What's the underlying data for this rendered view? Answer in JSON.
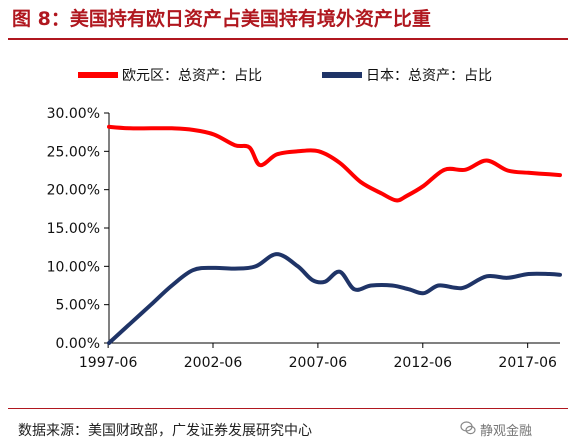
{
  "figure": {
    "title": "图 8：美国持有欧日资产占美国持有境外资产比重",
    "source": "数据来源：美国财政部，广发证券发展研究中心",
    "watermark": "静观金融"
  },
  "chart_data": {
    "type": "line",
    "title": "",
    "xlabel": "",
    "ylabel": "",
    "x_tick_labels": [
      "1997-06",
      "2002-06",
      "2007-06",
      "2012-06",
      "2017-06"
    ],
    "y_tick_labels": [
      "0.00%",
      "5.00%",
      "10.00%",
      "15.00%",
      "20.00%",
      "25.00%",
      "30.00%"
    ],
    "ylim": [
      0,
      30
    ],
    "xlim": [
      1997.5,
      2019.0
    ],
    "grid": false,
    "legend_position": "top",
    "series": [
      {
        "name": "欧元区：总资产：占比",
        "color": "#ff0000",
        "x": [
          1997.5,
          1998.5,
          1999.5,
          2000.5,
          2001.5,
          2002.5,
          2003.5,
          2004.2,
          2004.7,
          2005.5,
          2006.5,
          2007.5,
          2008.5,
          2009.5,
          2010.5,
          2011.2,
          2011.7,
          2012.5,
          2013.5,
          2014.5,
          2015.5,
          2016.5,
          2017.5,
          2018.5,
          2019.0
        ],
        "values": [
          28.2,
          28.0,
          28.0,
          28.0,
          27.8,
          27.2,
          25.8,
          25.5,
          23.2,
          24.6,
          25.0,
          25.0,
          23.5,
          21.0,
          19.5,
          18.6,
          19.2,
          20.5,
          22.6,
          22.6,
          23.8,
          22.5,
          22.2,
          22.0,
          21.9
        ]
      },
      {
        "name": "日本：总资产：占比",
        "color": "#1f3467",
        "x": [
          1997.5,
          1998.5,
          1999.5,
          2000.5,
          2001.5,
          2002.5,
          2003.5,
          2004.5,
          2005.5,
          2006.5,
          2007.2,
          2007.8,
          2008.5,
          2009.2,
          2010.0,
          2011.0,
          2011.8,
          2012.5,
          2013.2,
          2014.0,
          2014.5,
          2015.5,
          2016.5,
          2017.5,
          2018.5,
          2019.0
        ],
        "values": [
          0.0,
          2.5,
          5.0,
          7.5,
          9.5,
          9.8,
          9.7,
          10.0,
          11.6,
          10.0,
          8.2,
          8.0,
          9.3,
          7.0,
          7.5,
          7.5,
          7.0,
          6.5,
          7.5,
          7.2,
          7.3,
          8.7,
          8.5,
          9.0,
          9.0,
          8.9
        ]
      }
    ]
  }
}
